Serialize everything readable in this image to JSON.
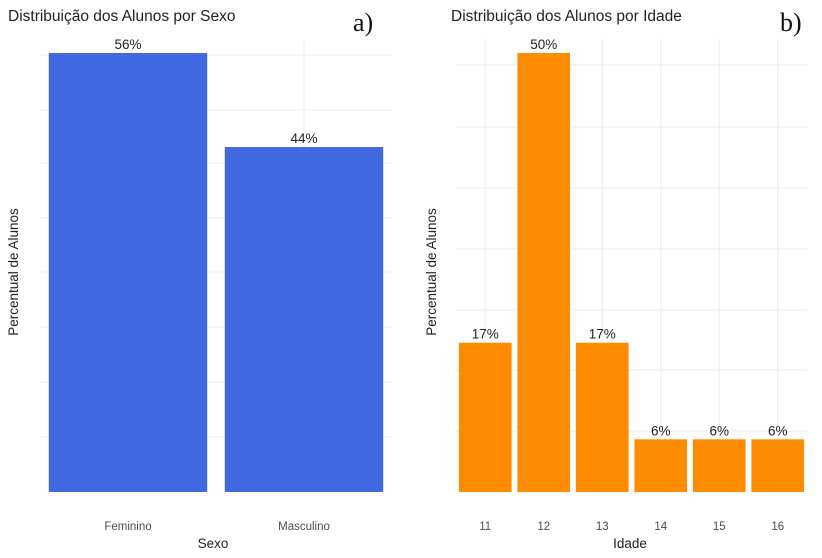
{
  "chart_data": [
    {
      "type": "bar",
      "panel": "a)",
      "title": "Distribuição dos Alunos por Sexo",
      "xlabel": "Sexo",
      "ylabel": "Percentual de Alunos",
      "categories": [
        "Feminino",
        "Masculino"
      ],
      "values": [
        56,
        44
      ],
      "data_labels": [
        "56%",
        "44%"
      ],
      "ylim": [
        0,
        56
      ],
      "y_tick_labels_shown": false,
      "grid": true,
      "bar_color": "#4169E1"
    },
    {
      "type": "bar",
      "panel": "b)",
      "title": "Distribuição dos Alunos por Idade",
      "xlabel": "Idade",
      "ylabel": "Percentual de Alunos",
      "categories": [
        "11",
        "12",
        "13",
        "14",
        "15",
        "16"
      ],
      "values": [
        17,
        50,
        17,
        6,
        6,
        6
      ],
      "data_labels": [
        "17%",
        "50%",
        "17%",
        "6%",
        "6%",
        "6%"
      ],
      "ylim": [
        0,
        50
      ],
      "y_tick_labels_shown": false,
      "grid": true,
      "bar_color": "#FF8C00"
    }
  ]
}
